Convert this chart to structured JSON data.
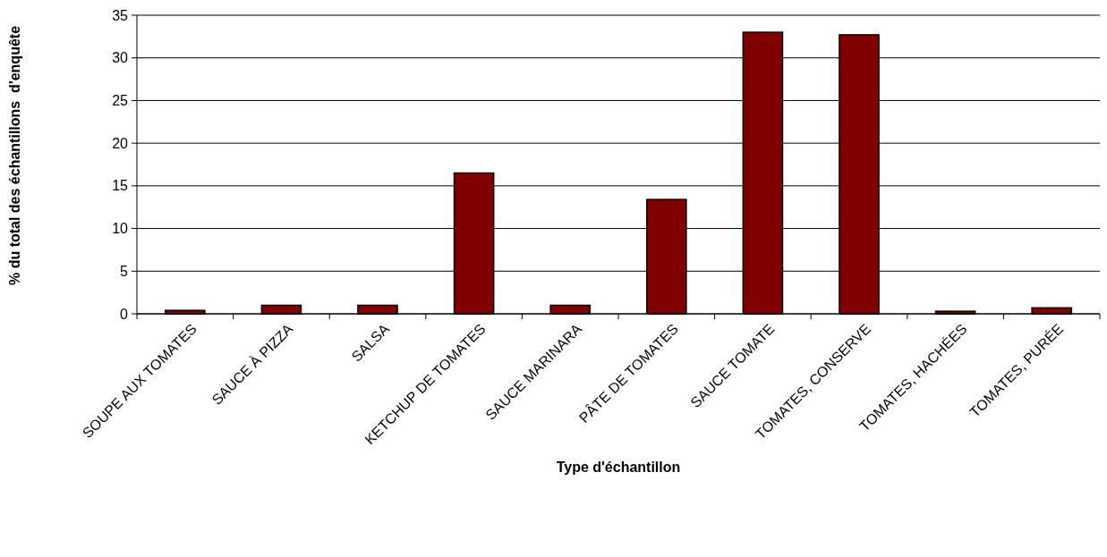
{
  "chart_data": {
    "type": "bar",
    "categories": [
      "SOUPE AUX TOMATES",
      "SAUCE À PIZZA",
      "SALSA",
      "KETCHUP DE TOMATES",
      "SAUCE MARINARA",
      "PÂTE DE TOMATES",
      "SAUCE TOMATE",
      "TOMATES, CONSERVE",
      "TOMATES, HACHÉES",
      "TOMATES, PURÉE"
    ],
    "values": [
      0.4,
      1.0,
      1.0,
      16.5,
      1.0,
      13.4,
      33.0,
      32.7,
      0.3,
      0.7
    ],
    "color": "#800000",
    "xlabel": "Type d'échantillon",
    "ylabel": "% du total des échantillons  d'enquête",
    "ylim": [
      0,
      35
    ],
    "yticks": [
      0,
      5,
      10,
      15,
      20,
      25,
      30,
      35
    ],
    "grid": "y"
  }
}
